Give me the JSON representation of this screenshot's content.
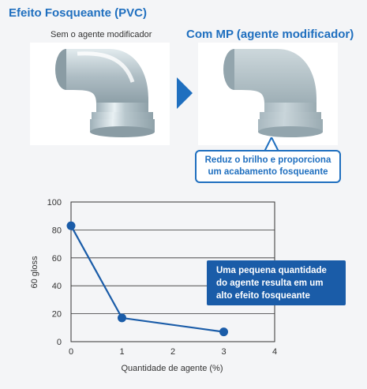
{
  "header": {
    "title": "Efeito Fosqueante (PVC)"
  },
  "panels": {
    "left_label": "Sem o agente modificador",
    "right_title": "Com MP (agente modificador)"
  },
  "callout": {
    "line1": "Reduz o brilho e proporciona",
    "line2": "um acabamento fosqueante"
  },
  "note": {
    "line1": "Uma pequena quantidade",
    "line2": "do agente resulta em um",
    "line3": "alto efeito fosqueante"
  },
  "colors": {
    "accent": "#1f6fbf",
    "note_bg": "#1a5ca8",
    "pipe": "#b9c7cd"
  },
  "chart_data": {
    "type": "line",
    "xlabel": "Quantidade de agente (%)",
    "ylabel": "60 gloss",
    "xlim": [
      0,
      4
    ],
    "ylim": [
      0,
      100
    ],
    "xticks": [
      "0",
      "1",
      "2",
      "3",
      "4"
    ],
    "yticks": [
      "0",
      "20",
      "40",
      "60",
      "80",
      "100"
    ],
    "grid": true,
    "x": [
      0,
      1,
      3
    ],
    "y": [
      83,
      17,
      7
    ]
  }
}
